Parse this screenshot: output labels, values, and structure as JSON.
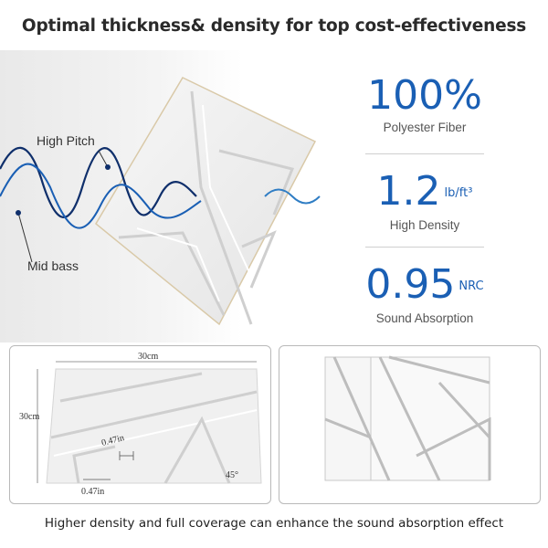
{
  "title": "Optimal thickness& density for top cost-effectiveness",
  "wave_labels": {
    "high": "High Pitch",
    "mid": "Mid bass"
  },
  "stats": [
    {
      "value": "100%",
      "unit": "",
      "label": "Polyester Fiber"
    },
    {
      "value": "1.2",
      "unit": "lb/ft³",
      "label": "High Density"
    },
    {
      "value": "0.95",
      "unit": "NRC",
      "label": "Sound Absorption"
    }
  ],
  "dimensions": {
    "width": "30cm",
    "height": "30cm",
    "gap": "0.47in",
    "thickness": "0.47in",
    "angle": "45°"
  },
  "footer": "Higher density and full coverage can enhance the sound absorption effect",
  "colors": {
    "accent": "#1a5fb4",
    "wave_dark": "#0f2f6b",
    "wave_light": "#3aa0d8"
  }
}
